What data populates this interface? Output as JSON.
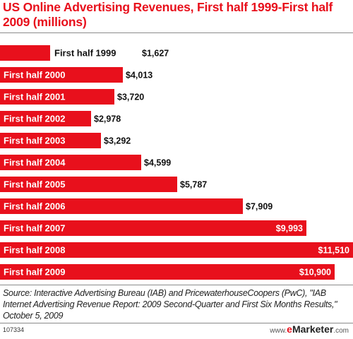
{
  "title": "US Online Advertising Revenues, First half 1999-First half 2009 (millions)",
  "source": "Source: Interactive Advertising Bureau (IAB) and PricewaterhouseCoopers (PwC), \"IAB Internet Advertising Revenue Report: 2009 Second-Quarter and First Six Months Results,\" October 5, 2009",
  "chart_id": "107334",
  "brand": {
    "www": "www.",
    "e": "e",
    "name": "Marketer",
    "com": ".com"
  },
  "colors": {
    "accent": "#e8101c",
    "text": "#111111",
    "inside_text": "#ffffff"
  },
  "chart_data": {
    "type": "bar",
    "orientation": "horizontal",
    "title": "US Online Advertising Revenues, First half 1999-First half 2009 (millions)",
    "categories": [
      "First half 1999",
      "First half 2000",
      "First half 2001",
      "First half 2002",
      "First half 2003",
      "First half 2004",
      "First half 2005",
      "First half 2006",
      "First half 2007",
      "First half 2008",
      "First half 2009"
    ],
    "values": [
      1627,
      4013,
      3720,
      2978,
      3292,
      4599,
      5787,
      7909,
      9993,
      11510,
      10900
    ],
    "value_labels": [
      "$1,627",
      "$4,013",
      "$3,720",
      "$2,978",
      "$3,292",
      "$4,599",
      "$5,787",
      "$7,909",
      "$9,993",
      "$11,510",
      "$10,900"
    ],
    "xlim": [
      0,
      11510
    ],
    "grid": false,
    "legend": "none",
    "xlabel": "",
    "ylabel": ""
  }
}
